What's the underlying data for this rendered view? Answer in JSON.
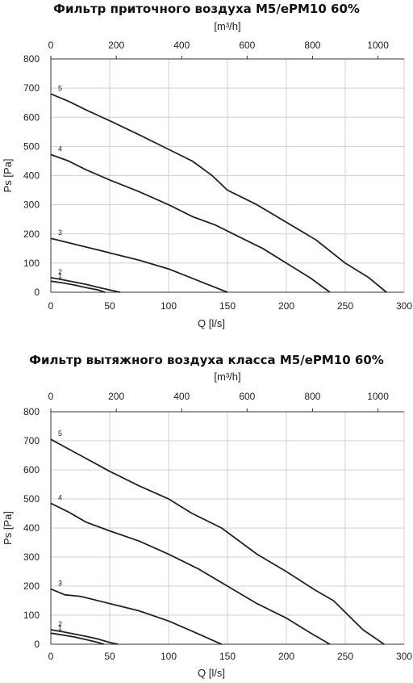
{
  "chart_data": [
    {
      "type": "line",
      "title": "Фильтр приточного воздуха M5/ePM10 60%",
      "xlabel": "Q [l/s]",
      "ylabel": "Ps [Pa]",
      "x2label": "[m³/h]",
      "xlim": [
        0,
        300
      ],
      "ylim": [
        0,
        800
      ],
      "x2lim": [
        0,
        1080
      ],
      "x_ticks": [
        "0",
        "50",
        "100",
        "150",
        "200",
        "250",
        "300"
      ],
      "y_ticks": [
        "0",
        "100",
        "200",
        "300",
        "400",
        "500",
        "600",
        "700",
        "800"
      ],
      "x2_ticks": [
        "0",
        "200",
        "400",
        "600",
        "800",
        "1000"
      ],
      "grid": true,
      "series": [
        {
          "name": "1",
          "x": [
            0,
            10,
            20,
            30,
            40,
            46
          ],
          "y": [
            38,
            32,
            25,
            16,
            8,
            0
          ]
        },
        {
          "name": "2",
          "x": [
            0,
            10,
            20,
            30,
            40,
            50,
            59
          ],
          "y": [
            50,
            43,
            35,
            27,
            17,
            8,
            0
          ]
        },
        {
          "name": "3",
          "x": [
            0,
            25,
            50,
            75,
            100,
            125,
            150
          ],
          "y": [
            185,
            160,
            135,
            110,
            80,
            40,
            0
          ]
        },
        {
          "name": "4",
          "x": [
            0,
            15,
            30,
            50,
            75,
            100,
            120,
            140,
            160,
            180,
            200,
            220,
            237
          ],
          "y": [
            472,
            450,
            420,
            385,
            345,
            300,
            260,
            230,
            190,
            150,
            100,
            50,
            0
          ]
        },
        {
          "name": "5",
          "x": [
            0,
            15,
            30,
            50,
            75,
            100,
            120,
            137,
            150,
            175,
            200,
            225,
            250,
            270,
            285
          ],
          "y": [
            680,
            655,
            625,
            588,
            540,
            490,
            450,
            400,
            350,
            300,
            240,
            180,
            100,
            50,
            0
          ]
        }
      ]
    },
    {
      "type": "line",
      "title": "Фильтр вытяжного воздуха класса M5/ePM10 60%",
      "xlabel": "Q [l/s]",
      "ylabel": "Ps [Pa]",
      "x2label": "[m³/h]",
      "xlim": [
        0,
        300
      ],
      "ylim": [
        0,
        800
      ],
      "x2lim": [
        0,
        1080
      ],
      "x_ticks": [
        "0",
        "50",
        "100",
        "150",
        "200",
        "250",
        "300"
      ],
      "y_ticks": [
        "0",
        "100",
        "200",
        "300",
        "400",
        "500",
        "600",
        "700",
        "800"
      ],
      "x2_ticks": [
        "0",
        "200",
        "400",
        "600",
        "800",
        "1000"
      ],
      "grid": true,
      "series": [
        {
          "name": "1",
          "x": [
            0,
            10,
            20,
            30,
            40,
            45
          ],
          "y": [
            38,
            32,
            25,
            16,
            6,
            0
          ]
        },
        {
          "name": "2",
          "x": [
            0,
            10,
            20,
            30,
            40,
            50,
            57
          ],
          "y": [
            50,
            43,
            35,
            27,
            18,
            6,
            0
          ]
        },
        {
          "name": "3",
          "x": [
            0,
            12,
            25,
            50,
            75,
            100,
            120,
            145
          ],
          "y": [
            190,
            170,
            165,
            140,
            115,
            80,
            45,
            0
          ]
        },
        {
          "name": "4",
          "x": [
            0,
            15,
            30,
            50,
            75,
            100,
            125,
            150,
            175,
            200,
            220,
            237
          ],
          "y": [
            485,
            455,
            420,
            390,
            355,
            310,
            260,
            200,
            140,
            90,
            40,
            0
          ]
        },
        {
          "name": "5",
          "x": [
            0,
            25,
            50,
            75,
            100,
            120,
            145,
            175,
            200,
            225,
            240,
            250,
            265,
            283
          ],
          "y": [
            705,
            650,
            595,
            545,
            500,
            450,
            400,
            310,
            250,
            185,
            150,
            110,
            50,
            0
          ]
        }
      ]
    }
  ]
}
